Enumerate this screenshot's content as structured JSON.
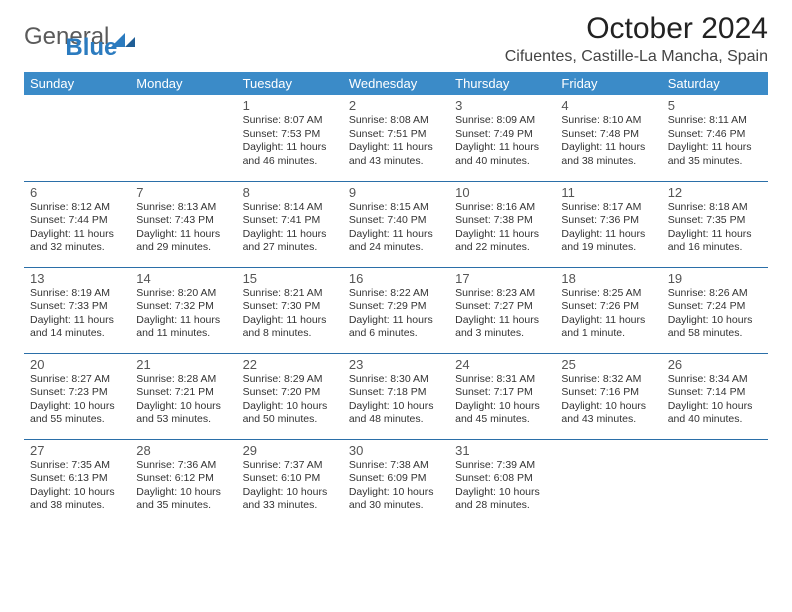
{
  "logo": {
    "text1": "General",
    "text2": "Blue"
  },
  "title": "October 2024",
  "location": "Cifuentes, Castille-La Mancha, Spain",
  "day_headers": [
    "Sunday",
    "Monday",
    "Tuesday",
    "Wednesday",
    "Thursday",
    "Friday",
    "Saturday"
  ],
  "colors": {
    "header_bg": "#3b8bc8",
    "header_fg": "#ffffff",
    "rule": "#2b6fa8",
    "logo_blue": "#2b7bbf"
  },
  "weeks": [
    [
      null,
      null,
      {
        "d": "1",
        "sr": "8:07 AM",
        "ss": "7:53 PM",
        "dl": "11 hours and 46 minutes."
      },
      {
        "d": "2",
        "sr": "8:08 AM",
        "ss": "7:51 PM",
        "dl": "11 hours and 43 minutes."
      },
      {
        "d": "3",
        "sr": "8:09 AM",
        "ss": "7:49 PM",
        "dl": "11 hours and 40 minutes."
      },
      {
        "d": "4",
        "sr": "8:10 AM",
        "ss": "7:48 PM",
        "dl": "11 hours and 38 minutes."
      },
      {
        "d": "5",
        "sr": "8:11 AM",
        "ss": "7:46 PM",
        "dl": "11 hours and 35 minutes."
      }
    ],
    [
      {
        "d": "6",
        "sr": "8:12 AM",
        "ss": "7:44 PM",
        "dl": "11 hours and 32 minutes."
      },
      {
        "d": "7",
        "sr": "8:13 AM",
        "ss": "7:43 PM",
        "dl": "11 hours and 29 minutes."
      },
      {
        "d": "8",
        "sr": "8:14 AM",
        "ss": "7:41 PM",
        "dl": "11 hours and 27 minutes."
      },
      {
        "d": "9",
        "sr": "8:15 AM",
        "ss": "7:40 PM",
        "dl": "11 hours and 24 minutes."
      },
      {
        "d": "10",
        "sr": "8:16 AM",
        "ss": "7:38 PM",
        "dl": "11 hours and 22 minutes."
      },
      {
        "d": "11",
        "sr": "8:17 AM",
        "ss": "7:36 PM",
        "dl": "11 hours and 19 minutes."
      },
      {
        "d": "12",
        "sr": "8:18 AM",
        "ss": "7:35 PM",
        "dl": "11 hours and 16 minutes."
      }
    ],
    [
      {
        "d": "13",
        "sr": "8:19 AM",
        "ss": "7:33 PM",
        "dl": "11 hours and 14 minutes."
      },
      {
        "d": "14",
        "sr": "8:20 AM",
        "ss": "7:32 PM",
        "dl": "11 hours and 11 minutes."
      },
      {
        "d": "15",
        "sr": "8:21 AM",
        "ss": "7:30 PM",
        "dl": "11 hours and 8 minutes."
      },
      {
        "d": "16",
        "sr": "8:22 AM",
        "ss": "7:29 PM",
        "dl": "11 hours and 6 minutes."
      },
      {
        "d": "17",
        "sr": "8:23 AM",
        "ss": "7:27 PM",
        "dl": "11 hours and 3 minutes."
      },
      {
        "d": "18",
        "sr": "8:25 AM",
        "ss": "7:26 PM",
        "dl": "11 hours and 1 minute."
      },
      {
        "d": "19",
        "sr": "8:26 AM",
        "ss": "7:24 PM",
        "dl": "10 hours and 58 minutes."
      }
    ],
    [
      {
        "d": "20",
        "sr": "8:27 AM",
        "ss": "7:23 PM",
        "dl": "10 hours and 55 minutes."
      },
      {
        "d": "21",
        "sr": "8:28 AM",
        "ss": "7:21 PM",
        "dl": "10 hours and 53 minutes."
      },
      {
        "d": "22",
        "sr": "8:29 AM",
        "ss": "7:20 PM",
        "dl": "10 hours and 50 minutes."
      },
      {
        "d": "23",
        "sr": "8:30 AM",
        "ss": "7:18 PM",
        "dl": "10 hours and 48 minutes."
      },
      {
        "d": "24",
        "sr": "8:31 AM",
        "ss": "7:17 PM",
        "dl": "10 hours and 45 minutes."
      },
      {
        "d": "25",
        "sr": "8:32 AM",
        "ss": "7:16 PM",
        "dl": "10 hours and 43 minutes."
      },
      {
        "d": "26",
        "sr": "8:34 AM",
        "ss": "7:14 PM",
        "dl": "10 hours and 40 minutes."
      }
    ],
    [
      {
        "d": "27",
        "sr": "7:35 AM",
        "ss": "6:13 PM",
        "dl": "10 hours and 38 minutes."
      },
      {
        "d": "28",
        "sr": "7:36 AM",
        "ss": "6:12 PM",
        "dl": "10 hours and 35 minutes."
      },
      {
        "d": "29",
        "sr": "7:37 AM",
        "ss": "6:10 PM",
        "dl": "10 hours and 33 minutes."
      },
      {
        "d": "30",
        "sr": "7:38 AM",
        "ss": "6:09 PM",
        "dl": "10 hours and 30 minutes."
      },
      {
        "d": "31",
        "sr": "7:39 AM",
        "ss": "6:08 PM",
        "dl": "10 hours and 28 minutes."
      },
      null,
      null
    ]
  ],
  "labels": {
    "sunrise": "Sunrise:",
    "sunset": "Sunset:",
    "daylight": "Daylight:"
  }
}
